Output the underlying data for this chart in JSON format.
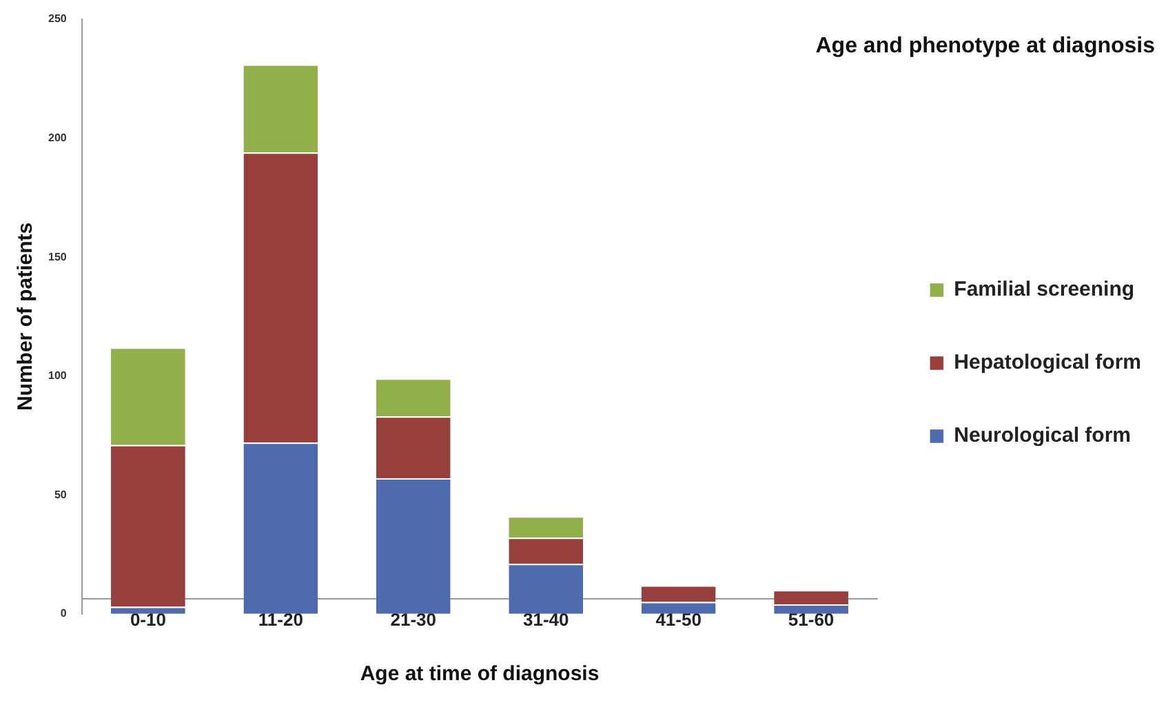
{
  "chart_data": {
    "type": "bar",
    "title": "Age and phenotype at diagnosis",
    "xlabel": "Age at time of diagnosis",
    "ylabel": "Number of patients",
    "categories": [
      "0-10",
      "11-20",
      "21-30",
      "31-40",
      "41-50",
      "51-60"
    ],
    "stacked": true,
    "series": [
      {
        "name": "Neurological form",
        "color": "#4f6aad",
        "values": [
          3,
          72,
          57,
          21,
          5,
          4
        ]
      },
      {
        "name": "Hepatological form",
        "color": "#963f3d",
        "values": [
          68,
          122,
          26,
          11,
          7,
          6
        ]
      },
      {
        "name": "Familial screening",
        "color": "#91b04a",
        "values": [
          41,
          37,
          16,
          9,
          0,
          0
        ]
      }
    ],
    "ylim": [
      0,
      250
    ],
    "yticks": [
      0,
      50,
      100,
      150,
      200,
      250
    ],
    "grid": false,
    "legend": "right"
  }
}
